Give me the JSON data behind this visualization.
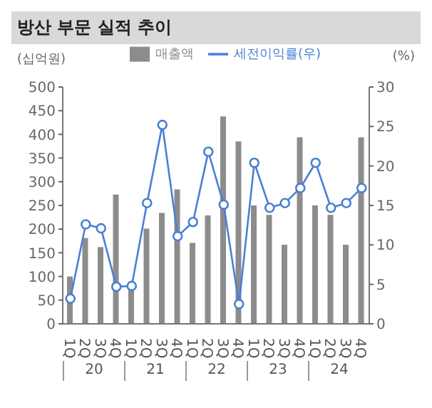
{
  "chart_data": {
    "type": "bar",
    "title": "방산 부문 실적 추이",
    "xlabel": null,
    "ylabel": "(십억원)",
    "y2label": "(%)",
    "categories": [
      "1Q",
      "2Q",
      "3Q",
      "4Q",
      "1Q",
      "2Q",
      "3Q",
      "4Q",
      "1Q",
      "2Q",
      "3Q",
      "4Q",
      "1Q",
      "2Q",
      "3Q",
      "4Q",
      "1Q",
      "2Q",
      "3Q",
      "4Q"
    ],
    "annotations": [
      "20",
      "21",
      "22",
      "23",
      "24"
    ],
    "series": [
      {
        "name": "매출액",
        "color": "#8c8c8c",
        "values": [
          100,
          181,
          162,
          273,
          80,
          201,
          234,
          284,
          171,
          229,
          438,
          385,
          250,
          230,
          167,
          394,
          250,
          230,
          167,
          394
        ]
      },
      {
        "name": "세전이익률(우)",
        "type": "line",
        "axis": "y2",
        "color": "#4a7fd4",
        "values": [
          3.2,
          12.6,
          12.1,
          4.7,
          4.8,
          15.3,
          25.2,
          11.1,
          12.9,
          21.8,
          15.1,
          2.5,
          20.4,
          14.7,
          15.3,
          17.2,
          20.4,
          14.7,
          15.3,
          17.2
        ]
      }
    ],
    "ylim": [
      0,
      500
    ],
    "yticks": [
      0,
      50,
      100,
      150,
      200,
      250,
      300,
      350,
      400,
      450,
      500
    ],
    "y2lim": [
      0,
      30
    ],
    "y2ticks": [
      0,
      5,
      10,
      15,
      20,
      25,
      30
    ],
    "grid": false,
    "legend": "top",
    "marker": "circle",
    "line_style": "solid"
  }
}
